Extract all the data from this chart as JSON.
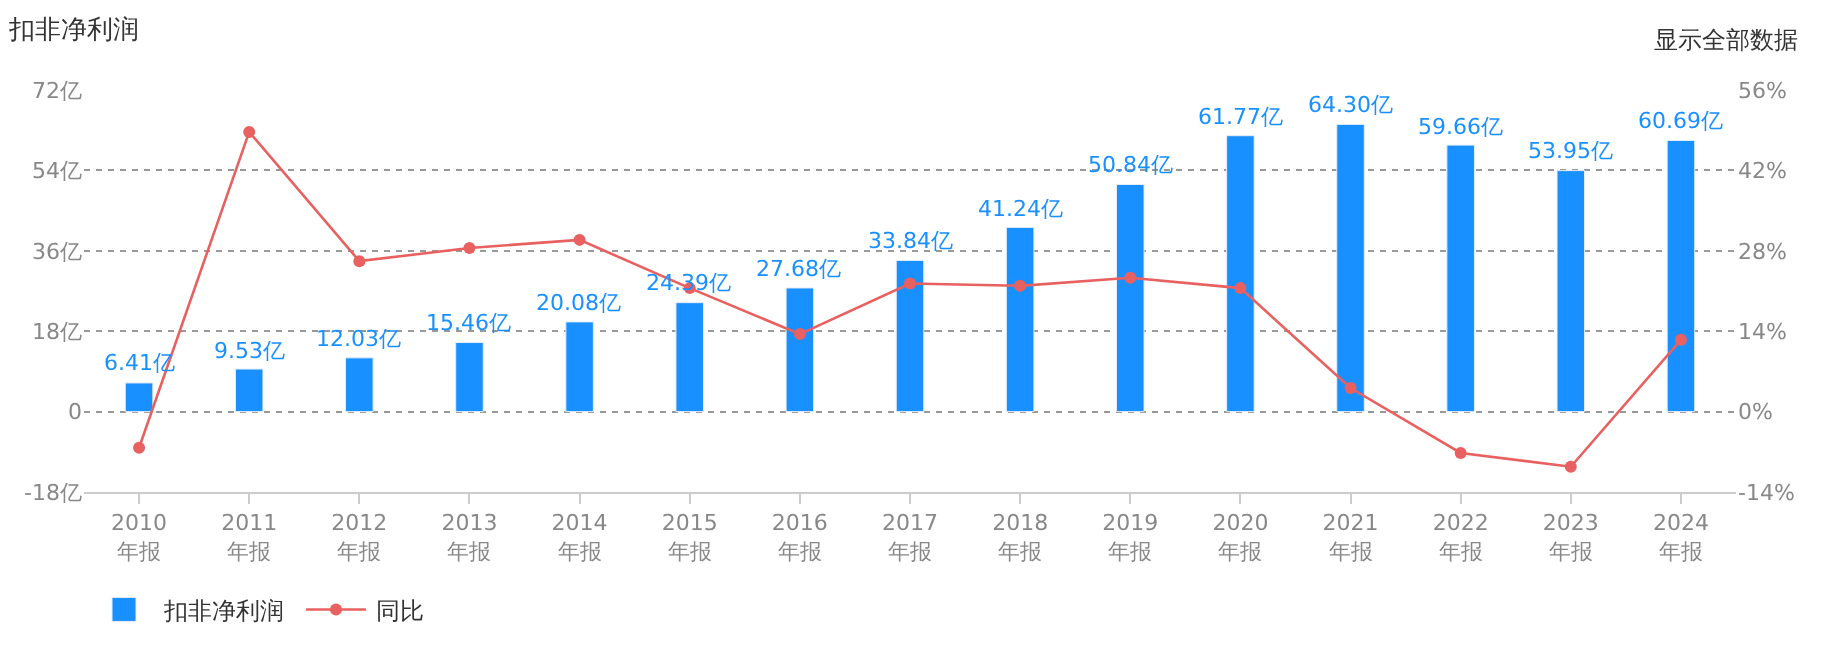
{
  "chart_data": {
    "type": "bar",
    "title": "扣非净利润",
    "categories": [
      "2010\n年报",
      "2011\n年报",
      "2012\n年报",
      "2013\n年报",
      "2014\n年报",
      "2015\n年报",
      "2016\n年报",
      "2017\n年报",
      "2018\n年报",
      "2019\n年报",
      "2020\n年报",
      "2021\n年报",
      "2022\n年报",
      "2023\n年报",
      "2024\n年报"
    ],
    "series": [
      {
        "name": "扣非净利润",
        "color": "#1890ff",
        "values": [
          6.41,
          9.53,
          12.03,
          15.46,
          20.08,
          24.39,
          27.68,
          33.84,
          41.24,
          50.84,
          61.77,
          64.3,
          59.66,
          53.95,
          60.69
        ],
        "value_labels": [
          "6.41亿",
          "9.53亿",
          "12.03亿",
          "15.46亿",
          "20.08亿",
          "24.39亿",
          "27.68亿",
          "33.84亿",
          "41.24亿",
          "50.84亿",
          "61.77亿",
          "64.30亿",
          "59.66亿",
          "53.95亿",
          "60.69亿"
        ]
      },
      {
        "name": "同比",
        "type": "line",
        "axis": "y2",
        "color": "#e8605f",
        "marker": "circle",
        "values": [
          -6.3,
          48.7,
          26.2,
          28.5,
          29.9,
          21.5,
          13.5,
          22.3,
          21.9,
          23.3,
          21.5,
          4.1,
          -7.2,
          -9.6,
          12.5
        ]
      }
    ],
    "ylim": [
      -18,
      72
    ],
    "yticks": [
      {
        "value": -18,
        "label": "-18亿"
      },
      0,
      {
        "value": 18,
        "label": "18亿"
      },
      {
        "value": 36,
        "label": "36亿"
      },
      {
        "value": 54,
        "label": "54亿"
      },
      {
        "value": 72,
        "label": "72亿"
      }
    ],
    "y2lim": [
      -14,
      56
    ],
    "y2ticks": [
      {
        "value": -14,
        "label": "-14%"
      },
      {
        "value": 0,
        "label": "0%"
      },
      {
        "value": 14,
        "label": "14%"
      },
      {
        "value": 28,
        "label": "28%"
      },
      {
        "value": 42,
        "label": "42%"
      },
      {
        "value": 56,
        "label": "56%"
      }
    ],
    "grid": "y",
    "legend": "bottom left",
    "annotations": [
      "显示全部数据"
    ]
  }
}
